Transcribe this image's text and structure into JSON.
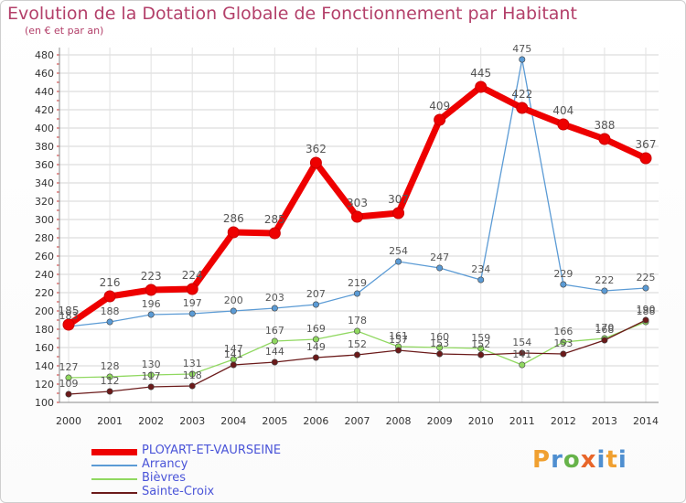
{
  "header": {
    "title": "Evolution de la Dotation Globale de Fonctionnement par Habitant",
    "subtitle": "(en € et par an)"
  },
  "logo": {
    "text": "Proxiti",
    "parts": [
      "P",
      "r",
      "o",
      "x",
      "i",
      "t",
      "i"
    ]
  },
  "chart_data": {
    "type": "line",
    "title": "Evolution de la Dotation Globale de Fonctionnement par Habitant",
    "subtitle": "(en € et par an)",
    "xlabel": "",
    "ylabel": "",
    "ylim": [
      100,
      480
    ],
    "y_ticks": [
      100,
      120,
      140,
      160,
      180,
      200,
      220,
      240,
      260,
      280,
      300,
      320,
      340,
      360,
      380,
      400,
      420,
      440,
      460,
      480
    ],
    "grid": true,
    "legend_position": "bottom-left",
    "x": [
      2000,
      2001,
      2002,
      2003,
      2004,
      2005,
      2006,
      2007,
      2008,
      2009,
      2010,
      2011,
      2012,
      2013,
      2014
    ],
    "series": [
      {
        "name": "PLOYART-ET-VAURSEINE",
        "color": "#ee0000",
        "emphasis": true,
        "values": [
          185,
          216,
          223,
          224,
          286,
          285,
          362,
          303,
          307,
          409,
          445,
          422,
          404,
          388,
          367
        ],
        "labels": [
          "185",
          "216",
          "223",
          "224",
          "286",
          "285",
          "362",
          "303",
          "307",
          "409",
          "445",
          "422",
          "404",
          "388",
          "367"
        ]
      },
      {
        "name": "Arrancy",
        "color": "#5b9bd5",
        "values": [
          183,
          188,
          196,
          197,
          200,
          203,
          207,
          219,
          254,
          247,
          234,
          475,
          229,
          222,
          225
        ],
        "labels": [
          "183",
          "188",
          "196",
          "197",
          "200",
          "203",
          "207",
          "219",
          "254",
          "247",
          "234",
          "475",
          "229",
          "222",
          "225"
        ]
      },
      {
        "name": "Bièvres",
        "color": "#90d860",
        "values": [
          127,
          128,
          130,
          131,
          147,
          167,
          169,
          178,
          161,
          160,
          159,
          141,
          166,
          170,
          188
        ],
        "labels": [
          "127",
          "128",
          "130",
          "131",
          "147",
          "167",
          "169",
          "178",
          "161",
          "160",
          "159",
          "141",
          "166",
          "170",
          "188"
        ]
      },
      {
        "name": "Sainte-Croix",
        "color": "#6b1a1a",
        "values": [
          109,
          112,
          117,
          118,
          141,
          144,
          149,
          152,
          157,
          153,
          152,
          154,
          153,
          168,
          190
        ],
        "labels": [
          "109",
          "112",
          "117",
          "118",
          "141",
          "144",
          "149",
          "152",
          "157",
          "153",
          "152",
          "154",
          "153",
          "168",
          "190"
        ]
      }
    ]
  }
}
